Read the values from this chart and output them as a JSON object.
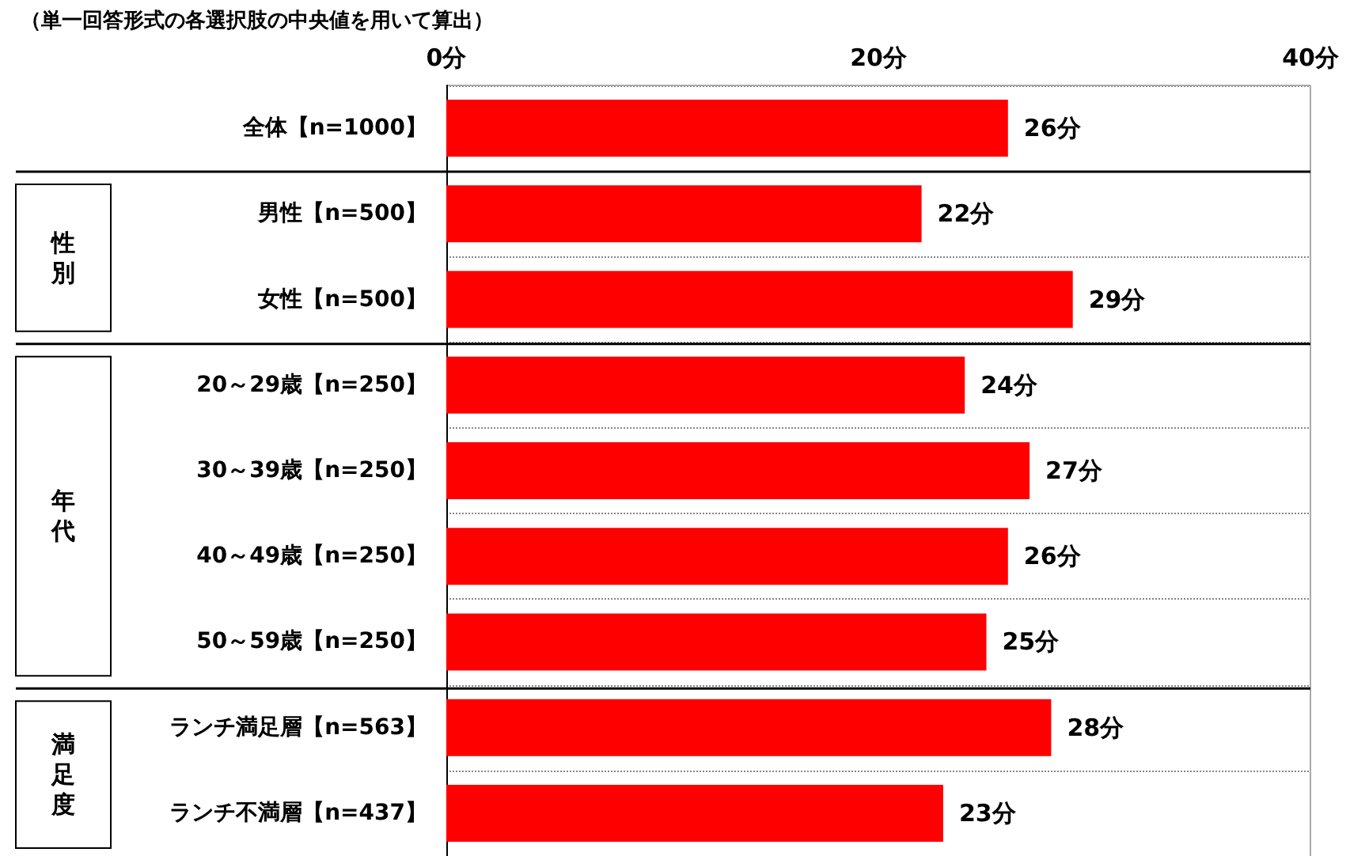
{
  "chart_data": {
    "type": "bar",
    "orientation": "horizontal",
    "subtitle": "（単一回答形式の各選択肢の中央値を用いて算出）",
    "categories": [
      "全体【n=1000】",
      "男性【n=500】",
      "女性【n=500】",
      "20～29歳【n=250】",
      "30～39歳【n=250】",
      "40～49歳【n=250】",
      "50～59歳【n=250】",
      "ランチ満足層【n=563】",
      "ランチ不満層【n=437】"
    ],
    "values": [
      26,
      22,
      29,
      24,
      27,
      26,
      25,
      28,
      23
    ],
    "value_labels": [
      "26分",
      "22分",
      "29分",
      "24分",
      "27分",
      "26分",
      "25分",
      "28分",
      "23分"
    ],
    "color": "#ff0000",
    "xlim": [
      0,
      40
    ],
    "xticks": [
      {
        "value": 0,
        "label": "0分"
      },
      {
        "value": 20,
        "label": "20分"
      },
      {
        "value": 40,
        "label": "40分"
      }
    ],
    "annotations": [
      "性別",
      "年代",
      "満足度"
    ],
    "grid": "y"
  }
}
